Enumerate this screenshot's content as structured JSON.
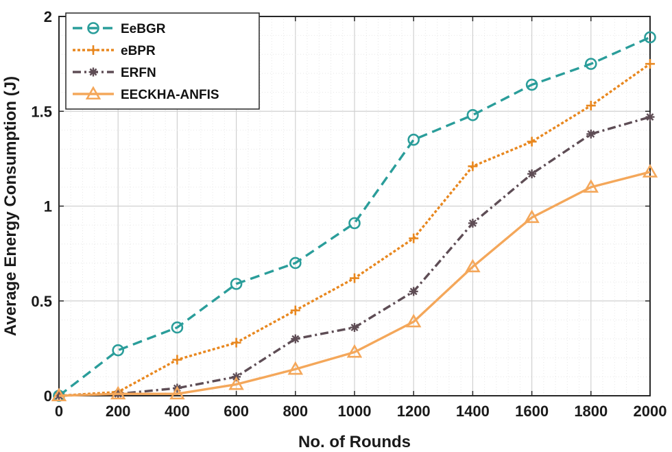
{
  "chart_data": {
    "type": "line",
    "xlabel": "No. of Rounds",
    "ylabel": "Average Energy Consumption (J)",
    "x": [
      0,
      200,
      400,
      600,
      800,
      1000,
      1200,
      1400,
      1600,
      1800,
      2000
    ],
    "xlim": [
      0,
      2000
    ],
    "ylim": [
      0,
      2
    ],
    "xticks": [
      0,
      200,
      400,
      600,
      800,
      1000,
      1200,
      1400,
      1600,
      1800,
      2000
    ],
    "yticks": [
      0,
      0.5,
      1,
      1.5,
      2
    ],
    "xtick_labels": [
      "0",
      "200",
      "400",
      "600",
      "800",
      "1000",
      "1200",
      "1400",
      "1600",
      "1800",
      "2000"
    ],
    "ytick_labels": [
      "0",
      "0.5",
      "1",
      "1.5",
      "2"
    ],
    "grid": true,
    "minor_grid": true,
    "legend_position": "top-left",
    "series": [
      {
        "name": "EeBGR",
        "color": "#2a9d9a",
        "marker": "circle",
        "dash": "dashed",
        "values": [
          0,
          0.24,
          0.36,
          0.59,
          0.7,
          0.91,
          1.35,
          1.48,
          1.64,
          1.75,
          1.89
        ]
      },
      {
        "name": "eBPR",
        "color": "#e8871e",
        "marker": "plus",
        "dash": "dotted",
        "values": [
          0,
          0.02,
          0.19,
          0.28,
          0.45,
          0.62,
          0.83,
          1.21,
          1.34,
          1.53,
          1.75
        ]
      },
      {
        "name": "ERFN",
        "color": "#5e4d55",
        "marker": "asterisk",
        "dash": "dashdot",
        "values": [
          0,
          0.01,
          0.04,
          0.1,
          0.3,
          0.36,
          0.55,
          0.91,
          1.17,
          1.38,
          1.47
        ]
      },
      {
        "name": "EECKHA-ANFIS",
        "color": "#f4a75a",
        "marker": "triangle",
        "dash": "solid",
        "values": [
          0,
          0.01,
          0.01,
          0.06,
          0.14,
          0.23,
          0.39,
          0.68,
          0.94,
          1.1,
          1.18
        ]
      }
    ]
  }
}
